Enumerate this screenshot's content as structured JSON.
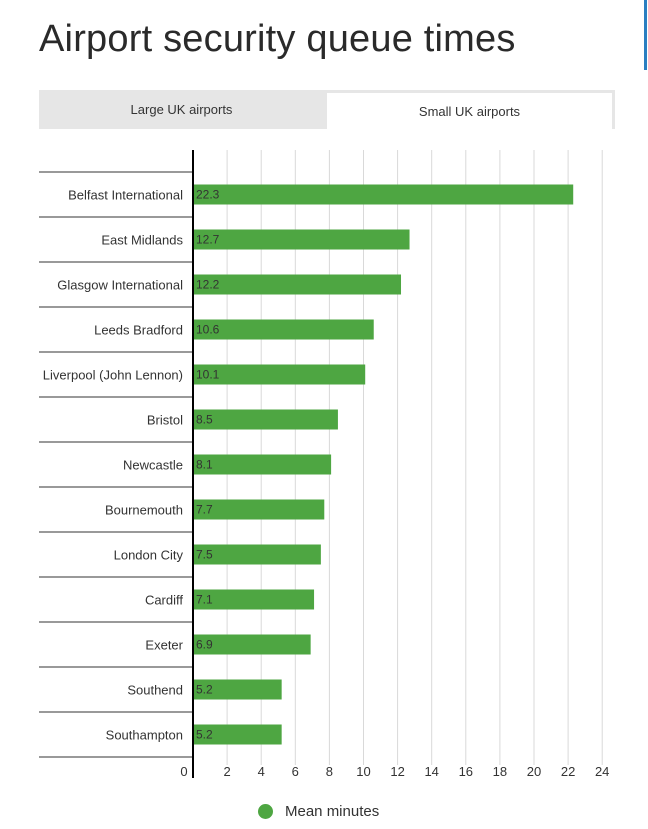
{
  "title": "Airport security queue times",
  "tabs": [
    {
      "label": "Large UK airports",
      "active": false
    },
    {
      "label": "Small UK airports",
      "active": true
    }
  ],
  "colors": {
    "bar": "#4ea642",
    "axis": "#000000",
    "grid": "#d9d9d9"
  },
  "legend": {
    "label": "Mean minutes",
    "icon": "circle-marker"
  },
  "chart_data": {
    "type": "bar",
    "orientation": "horizontal",
    "categories": [
      "Belfast International",
      "East Midlands",
      "Glasgow International",
      "Leeds Bradford",
      "Liverpool (John Lennon)",
      "Bristol",
      "Newcastle",
      "Bournemouth",
      "London City",
      "Cardiff",
      "Exeter",
      "Southend",
      "Southampton"
    ],
    "series": [
      {
        "name": "Mean minutes",
        "values": [
          22.3,
          12.7,
          12.2,
          10.6,
          10.1,
          8.5,
          8.1,
          7.7,
          7.5,
          7.1,
          6.9,
          5.2,
          5.2
        ]
      }
    ],
    "value_labels": [
      "22.3",
      "12.7",
      "12.2",
      "10.6",
      "10.1",
      "8.5",
      "8.1",
      "7.7",
      "7.5",
      "7.1",
      "6.9",
      "5.2",
      "5.2"
    ],
    "xticks": [
      "0",
      "2",
      "4",
      "6",
      "8",
      "10",
      "12",
      "14",
      "16",
      "18",
      "20",
      "22",
      "24"
    ],
    "xlim": [
      0,
      24
    ],
    "grid": true,
    "legend_position": "bottom"
  }
}
